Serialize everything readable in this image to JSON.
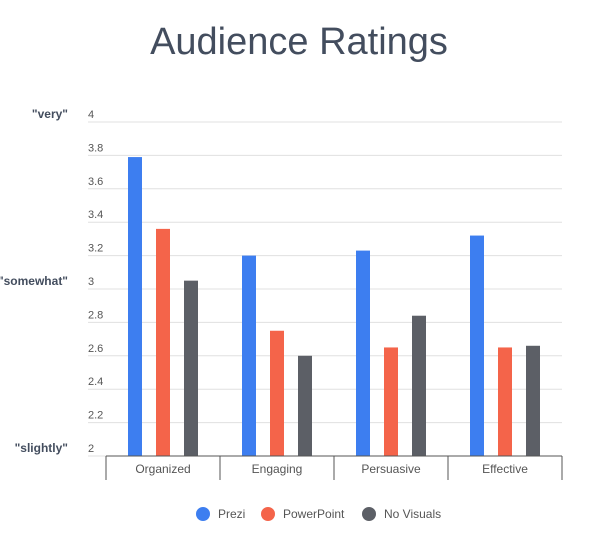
{
  "chart_data": {
    "type": "bar",
    "title": "Audience Ratings",
    "categories": [
      "Organized",
      "Engaging",
      "Persuasive",
      "Effective"
    ],
    "series": [
      {
        "name": "Prezi",
        "color": "#3d7ef0",
        "values": [
          3.79,
          3.2,
          3.23,
          3.32
        ]
      },
      {
        "name": "PowerPoint",
        "color": "#f4644a",
        "values": [
          3.36,
          2.75,
          2.65,
          2.65
        ]
      },
      {
        "name": "No Visuals",
        "color": "#5c5f66",
        "values": [
          3.05,
          2.6,
          2.84,
          2.66
        ]
      }
    ],
    "ylim": [
      2,
      4
    ],
    "yticks": [
      "2",
      "2.2",
      "2.4",
      "2.6",
      "2.8",
      "3",
      "3.2",
      "3.4",
      "3.6",
      "3.8",
      "4"
    ],
    "side_labels": [
      {
        "text": "\"very\"",
        "value": 4
      },
      {
        "text": "\"somewhat\"",
        "value": 3
      },
      {
        "text": "\"slightly\"",
        "value": 2
      }
    ],
    "grid": true,
    "legend": "bottom-center",
    "xlabel": "",
    "ylabel": ""
  }
}
